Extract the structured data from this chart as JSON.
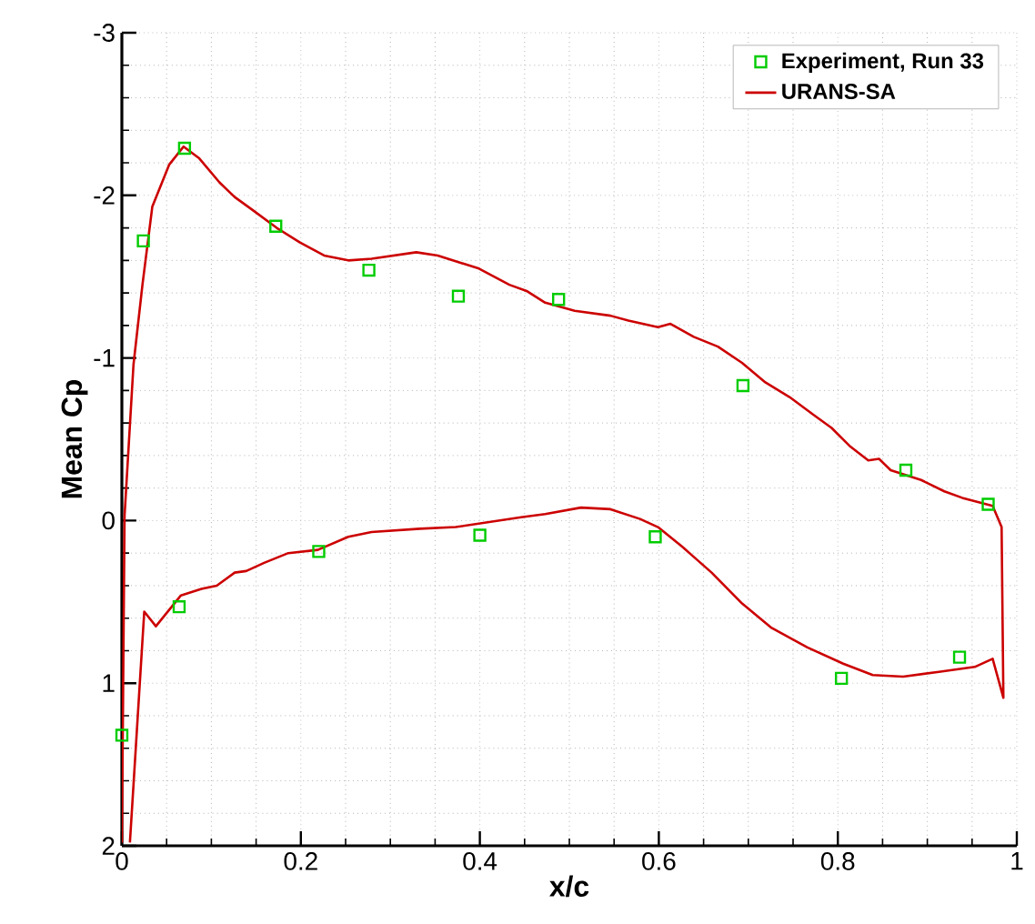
{
  "chart_data": {
    "type": "line",
    "xlabel": "x/c",
    "ylabel": "Mean Cp",
    "xlim": [
      0,
      1
    ],
    "ylim": [
      2,
      -3
    ],
    "xticks": [
      0,
      0.2,
      0.4,
      0.6,
      0.8,
      1
    ],
    "yticks": [
      -3,
      -2,
      -1,
      0,
      1,
      2
    ],
    "grid": true,
    "legend": "top right",
    "series": [
      {
        "name": "Experiment, Run 33",
        "type": "scatter",
        "marker": "square",
        "color": "#00cc00",
        "x": [
          0.0,
          0.024,
          0.07,
          0.172,
          0.276,
          0.376,
          0.488,
          0.694,
          0.876,
          0.968,
          0.064,
          0.22,
          0.4,
          0.596,
          0.804,
          0.936
        ],
        "values": [
          1.32,
          -1.72,
          -2.29,
          -1.81,
          -1.54,
          -1.38,
          -1.36,
          -0.83,
          -0.31,
          -0.1,
          0.53,
          0.19,
          0.09,
          0.1,
          0.97,
          0.84
        ]
      },
      {
        "name": "URANS-SA",
        "marker": "none",
        "line_style": "solid",
        "color": "#cc0000",
        "x": [
          0.0,
          0.003,
          0.013,
          0.023,
          0.034,
          0.053,
          0.069,
          0.086,
          0.109,
          0.126,
          0.146,
          0.173,
          0.199,
          0.226,
          0.253,
          0.279,
          0.329,
          0.353,
          0.399,
          0.433,
          0.453,
          0.473,
          0.506,
          0.546,
          0.566,
          0.599,
          0.613,
          0.639,
          0.666,
          0.693,
          0.719,
          0.746,
          0.773,
          0.793,
          0.813,
          0.834,
          0.846,
          0.859,
          0.893,
          0.919,
          0.939,
          0.973,
          0.983,
          0.985,
          0.973,
          0.953,
          0.913,
          0.873,
          0.839,
          0.806,
          0.766,
          0.726,
          0.693,
          0.659,
          0.626,
          0.599,
          0.579,
          0.546,
          0.513,
          0.473,
          0.446,
          0.373,
          0.333,
          0.279,
          0.253,
          0.219,
          0.186,
          0.159,
          0.139,
          0.126,
          0.106,
          0.089,
          0.066,
          0.038,
          0.025,
          0.009
        ],
        "values": [
          1.98,
          -0.03,
          -0.96,
          -1.45,
          -1.93,
          -2.19,
          -2.3,
          -2.23,
          -2.08,
          -1.99,
          -1.91,
          -1.8,
          -1.71,
          -1.63,
          -1.6,
          -1.61,
          -1.65,
          -1.63,
          -1.55,
          -1.45,
          -1.41,
          -1.34,
          -1.29,
          -1.26,
          -1.23,
          -1.19,
          -1.21,
          -1.13,
          -1.07,
          -0.97,
          -0.85,
          -0.76,
          -0.65,
          -0.57,
          -0.46,
          -0.37,
          -0.38,
          -0.31,
          -0.25,
          -0.18,
          -0.14,
          -0.09,
          0.04,
          1.09,
          0.85,
          0.9,
          0.93,
          0.96,
          0.95,
          0.88,
          0.78,
          0.66,
          0.51,
          0.32,
          0.16,
          0.04,
          -0.01,
          -0.07,
          -0.08,
          -0.04,
          -0.02,
          0.04,
          0.05,
          0.07,
          0.1,
          0.18,
          0.2,
          0.26,
          0.31,
          0.32,
          0.4,
          0.42,
          0.46,
          0.65,
          0.56,
          1.98
        ]
      }
    ]
  }
}
